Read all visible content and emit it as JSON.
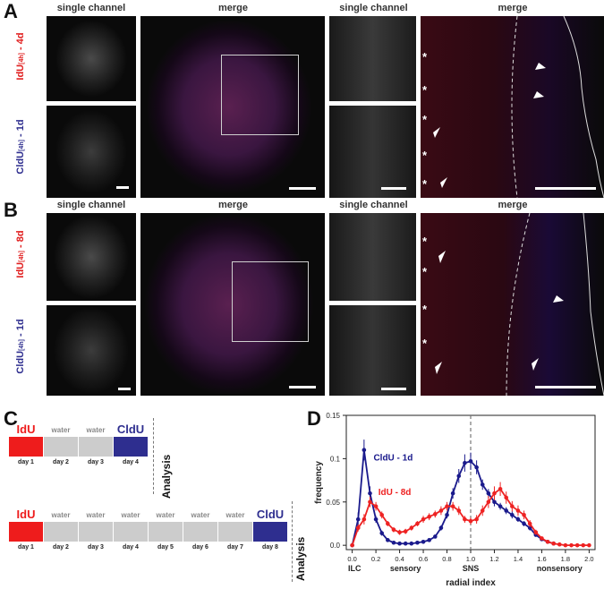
{
  "panels": {
    "A": {
      "letter": "A",
      "headers": [
        "single channel",
        "merge",
        "single channel",
        "merge"
      ],
      "label_red_main": "IdU",
      "label_red_sub": "[4h]",
      "label_red_time": " - 4d",
      "label_blue_main": "CldU",
      "label_blue_sub": "[4h]",
      "label_blue_time": " - 1d",
      "asterisk": "*"
    },
    "B": {
      "letter": "B",
      "headers": [
        "single channel",
        "merge",
        "single channel",
        "merge"
      ],
      "label_red_main": "IdU",
      "label_red_sub": "[4h]",
      "label_red_time": " - 8d",
      "label_blue_main": "CldU",
      "label_blue_sub": "[4h]",
      "label_blue_time": " - 1d",
      "asterisk": "*"
    },
    "C": {
      "letter": "C",
      "analysis_label": "Analysis",
      "timeline1": [
        {
          "label": "IdU",
          "day": "day 1",
          "kind": "idu"
        },
        {
          "label": "water",
          "day": "day 2",
          "kind": "water"
        },
        {
          "label": "water",
          "day": "day 3",
          "kind": "water"
        },
        {
          "label": "CldU",
          "day": "day 4",
          "kind": "cldu"
        }
      ],
      "timeline2": [
        {
          "label": "IdU",
          "day": "day 1",
          "kind": "idu"
        },
        {
          "label": "water",
          "day": "day 2",
          "kind": "water"
        },
        {
          "label": "water",
          "day": "day 3",
          "kind": "water"
        },
        {
          "label": "water",
          "day": "day 4",
          "kind": "water"
        },
        {
          "label": "water",
          "day": "day 5",
          "kind": "water"
        },
        {
          "label": "water",
          "day": "day 6",
          "kind": "water"
        },
        {
          "label": "water",
          "day": "day 7",
          "kind": "water"
        },
        {
          "label": "CldU",
          "day": "day 8",
          "kind": "cldu"
        }
      ],
      "colors": {
        "idu": "#ee1c1c",
        "water": "#cccccc",
        "cldu": "#2e2e8f",
        "idu_text": "#ee1c1c",
        "cldu_text": "#2e2e8f",
        "water_text": "#888888"
      }
    },
    "D": {
      "letter": "D"
    }
  },
  "chart_data": {
    "type": "line",
    "xlabel": "radial index",
    "ylabel": "frequency",
    "xlim": [
      -0.05,
      2.05
    ],
    "ylim": [
      -0.005,
      0.15
    ],
    "xticks": [
      "0.0",
      "0.2",
      "0.4",
      "0.6",
      "0.8",
      "1.0",
      "1.2",
      "1.4",
      "1.6",
      "1.8",
      "2.0"
    ],
    "yticks": [
      "0.0",
      "0.05",
      "0.1",
      "0.15"
    ],
    "region_labels": [
      "ILC",
      "sensory",
      "SNS",
      "nonsensory"
    ],
    "vline_x": 1.0,
    "series": [
      {
        "name": "CldU - 1d",
        "color": "#1a1a8c",
        "x": [
          0.0,
          0.05,
          0.1,
          0.15,
          0.2,
          0.25,
          0.3,
          0.35,
          0.4,
          0.45,
          0.5,
          0.55,
          0.6,
          0.65,
          0.7,
          0.75,
          0.8,
          0.85,
          0.9,
          0.95,
          1.0,
          1.05,
          1.1,
          1.15,
          1.2,
          1.25,
          1.3,
          1.35,
          1.4,
          1.45,
          1.5,
          1.55,
          1.6,
          1.65,
          1.7
        ],
        "y": [
          0.0,
          0.03,
          0.11,
          0.06,
          0.03,
          0.014,
          0.006,
          0.003,
          0.002,
          0.002,
          0.002,
          0.003,
          0.004,
          0.006,
          0.01,
          0.02,
          0.035,
          0.06,
          0.08,
          0.095,
          0.097,
          0.09,
          0.07,
          0.06,
          0.05,
          0.045,
          0.04,
          0.035,
          0.03,
          0.025,
          0.02,
          0.012,
          0.007,
          0.004,
          0.002
        ],
        "err": [
          0.0,
          0.008,
          0.012,
          0.008,
          0.004,
          0.003,
          0.002,
          0.001,
          0.001,
          0.001,
          0.001,
          0.001,
          0.001,
          0.001,
          0.002,
          0.003,
          0.004,
          0.006,
          0.008,
          0.01,
          0.01,
          0.008,
          0.006,
          0.005,
          0.005,
          0.004,
          0.004,
          0.004,
          0.003,
          0.003,
          0.003,
          0.002,
          0.002,
          0.001,
          0.001
        ]
      },
      {
        "name": "IdU - 8d",
        "color": "#ee2222",
        "x": [
          0.0,
          0.05,
          0.1,
          0.15,
          0.2,
          0.25,
          0.3,
          0.35,
          0.4,
          0.45,
          0.5,
          0.55,
          0.6,
          0.65,
          0.7,
          0.75,
          0.8,
          0.85,
          0.9,
          0.95,
          1.0,
          1.05,
          1.1,
          1.15,
          1.2,
          1.25,
          1.3,
          1.35,
          1.4,
          1.45,
          1.5,
          1.55,
          1.6,
          1.65,
          1.7,
          1.75,
          1.8,
          1.85,
          1.9,
          1.95,
          2.0
        ],
        "y": [
          0.0,
          0.02,
          0.03,
          0.05,
          0.045,
          0.035,
          0.025,
          0.018,
          0.015,
          0.016,
          0.02,
          0.025,
          0.03,
          0.033,
          0.036,
          0.04,
          0.045,
          0.045,
          0.04,
          0.03,
          0.028,
          0.03,
          0.04,
          0.05,
          0.06,
          0.065,
          0.055,
          0.045,
          0.04,
          0.035,
          0.025,
          0.015,
          0.008,
          0.004,
          0.002,
          0.001,
          0.0,
          0.0,
          0.0,
          0.0,
          0.0
        ],
        "err": [
          0.0,
          0.004,
          0.006,
          0.006,
          0.005,
          0.004,
          0.003,
          0.003,
          0.003,
          0.003,
          0.003,
          0.003,
          0.004,
          0.004,
          0.004,
          0.005,
          0.005,
          0.005,
          0.005,
          0.004,
          0.004,
          0.005,
          0.006,
          0.007,
          0.008,
          0.008,
          0.007,
          0.006,
          0.006,
          0.005,
          0.004,
          0.003,
          0.002,
          0.001,
          0.001,
          0.001,
          0.0,
          0.0,
          0.0,
          0.0,
          0.0
        ]
      }
    ]
  }
}
